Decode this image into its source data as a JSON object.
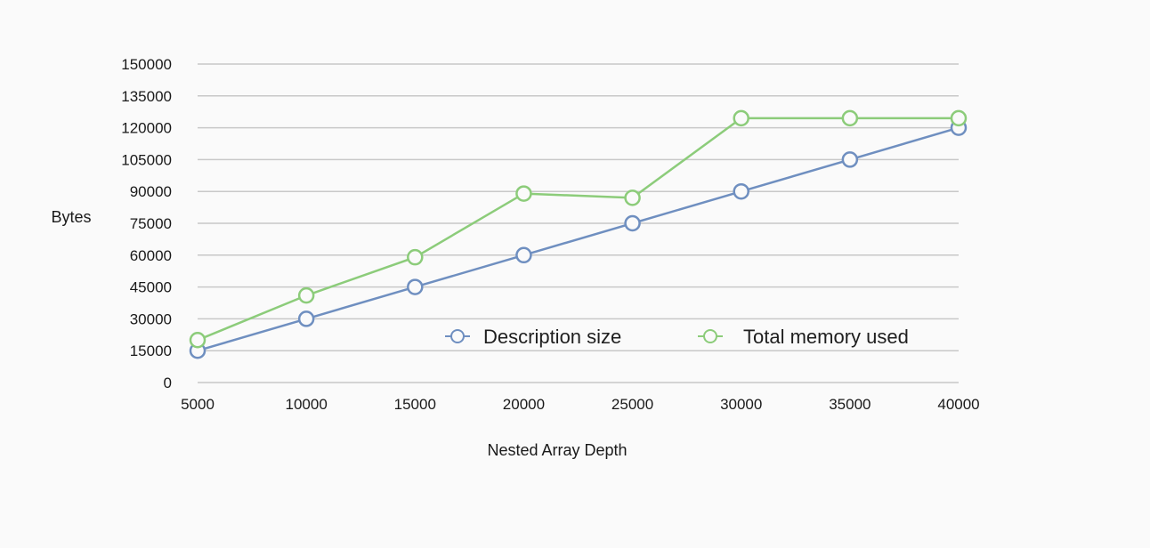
{
  "chart_data": {
    "type": "line",
    "title": "",
    "xlabel": "Nested Array Depth",
    "ylabel": "Bytes",
    "x": [
      5000,
      10000,
      15000,
      20000,
      25000,
      30000,
      35000,
      40000
    ],
    "x_ticks": [
      "5000",
      "10000",
      "15000",
      "20000",
      "25000",
      "30000",
      "35000",
      "40000"
    ],
    "ylim": [
      0,
      150000
    ],
    "y_ticks": [
      "0",
      "15000",
      "30000",
      "45000",
      "60000",
      "75000",
      "90000",
      "105000",
      "120000",
      "135000",
      "150000"
    ],
    "grid": "horizontal",
    "legend_position": "bottom-right",
    "series": [
      {
        "name": "Description size",
        "color": "#6f8fc0",
        "values": [
          15000,
          30000,
          45000,
          60000,
          75000,
          90000,
          105000,
          120000
        ]
      },
      {
        "name": "Total memory used",
        "color": "#8ccc7a",
        "values": [
          20000,
          41000,
          59000,
          89000,
          87000,
          124500,
          124500,
          124500
        ]
      }
    ]
  }
}
